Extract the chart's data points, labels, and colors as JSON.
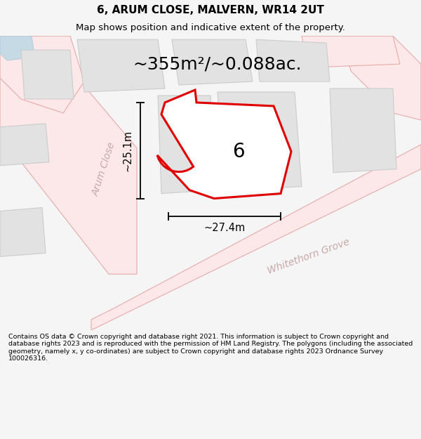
{
  "title": "6, ARUM CLOSE, MALVERN, WR14 2UT",
  "subtitle": "Map shows position and indicative extent of the property.",
  "area_label": "~355m²/~0.088ac.",
  "plot_number": "6",
  "dim_width": "~27.4m",
  "dim_height": "~25.1m",
  "street1": "Arum Close",
  "street2": "Whitethorn Grove",
  "footer": "Contains OS data © Crown copyright and database right 2021. This information is subject to Crown copyright and database rights 2023 and is reproduced with the permission of HM Land Registry. The polygons (including the associated geometry, namely x, y co-ordinates) are subject to Crown copyright and database rights 2023 Ordnance Survey 100026316.",
  "bg_color": "#f5f5f5",
  "map_bg": "#ffffff",
  "road_fill": "#fce8e8",
  "road_stroke": "#e8aaaa",
  "plot_fill": "#ffffff",
  "plot_stroke": "#e00000",
  "dim_color": "#111111",
  "building_fill": "#e2e2e2",
  "building_stroke": "#cccccc",
  "label_color": "#c8a8a8",
  "title_fontsize": 11,
  "subtitle_fontsize": 9.5,
  "area_fontsize": 18,
  "plot_label_fontsize": 20,
  "dim_fontsize": 10.5,
  "street_fontsize": 10,
  "footer_fontsize": 6.8
}
